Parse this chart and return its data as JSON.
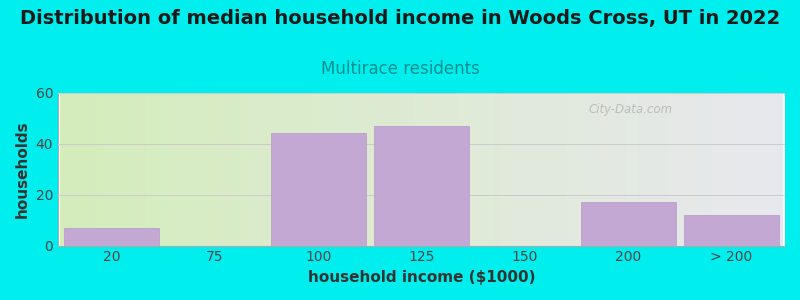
{
  "title": "Distribution of median household income in Woods Cross, UT in 2022",
  "subtitle": "Multirace residents",
  "xlabel": "household income ($1000)",
  "ylabel": "households",
  "background_color": "#00EEEE",
  "bar_color": "#C4A8D4",
  "bar_edge_color": "#B898C8",
  "categories": [
    "20",
    "75",
    "100",
    "125",
    "150",
    "200",
    "> 200"
  ],
  "values": [
    7,
    0,
    44,
    47,
    0,
    17,
    12
  ],
  "ylim": [
    0,
    60
  ],
  "yticks": [
    0,
    20,
    40,
    60
  ],
  "title_fontsize": 14,
  "subtitle_fontsize": 12,
  "subtitle_color": "#009090",
  "axis_label_fontsize": 11,
  "tick_fontsize": 10,
  "watermark_text": "City-Data.com",
  "gradient_left": "#d4edbb",
  "gradient_right": "#e8e8ee"
}
